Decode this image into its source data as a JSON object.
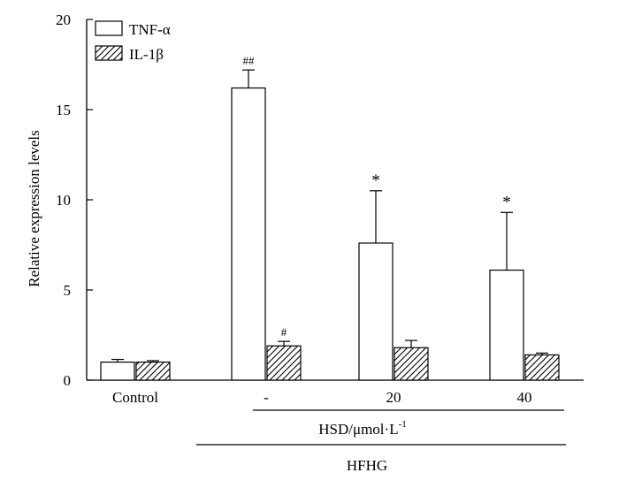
{
  "chart_data": {
    "type": "bar",
    "categories": [
      "Control",
      "-",
      "20",
      "40"
    ],
    "series": [
      {
        "name": "TNF-α",
        "pattern": "open",
        "values": [
          1.0,
          16.2,
          7.6,
          6.1
        ],
        "errors": [
          0.15,
          1.0,
          2.9,
          3.2
        ],
        "annotations": [
          "",
          "##",
          "*",
          "*"
        ]
      },
      {
        "name": "IL-1β",
        "pattern": "hatched",
        "values": [
          1.0,
          1.9,
          1.8,
          1.4
        ],
        "errors": [
          0.08,
          0.25,
          0.4,
          0.1
        ],
        "annotations": [
          "",
          "#",
          "",
          ""
        ]
      }
    ],
    "ylabel": "Relative expression levels",
    "ylim": [
      0,
      20
    ],
    "yticks": [
      "0",
      "5",
      "10",
      "15",
      "20"
    ],
    "grid": false,
    "legend_position": "top-left",
    "group_labels": {
      "hsd_prefix": "HSD/μmol·L",
      "hsd_superscript": "-1",
      "hfhg": "HFHG"
    },
    "colors": {
      "bar_fill": "#ffffff",
      "stroke": "#000000",
      "hatch": "#000000"
    }
  }
}
